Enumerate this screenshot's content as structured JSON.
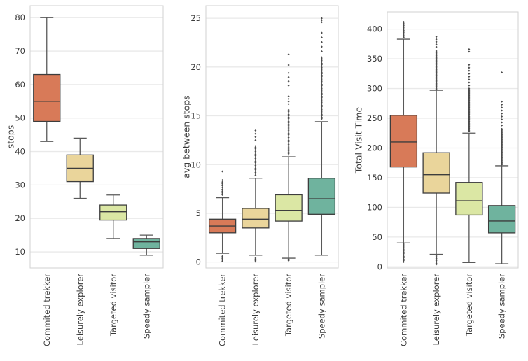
{
  "figure": {
    "background": "#ffffff",
    "text_color": "#3b3b3b",
    "grid_color": "#e9e9e9",
    "spine_color": "#d2d2d2",
    "box_edge_color": "#3d3d3d",
    "whisker_color": "#595959",
    "flier_color": "#4a4a4a",
    "box_fills": [
      "#d87a58",
      "#ead59b",
      "#dbe7a4",
      "#6fb39e"
    ]
  },
  "chart_data": [
    {
      "type": "box",
      "title": "",
      "ylabel": "stops",
      "xlabel": "",
      "categories": [
        "Commited trekker",
        "Leisurely explorer",
        "Targeted visitor",
        "Speedy sampler"
      ],
      "ylim": [
        5.2,
        83.6
      ],
      "yticks": [
        10,
        20,
        30,
        40,
        50,
        60,
        70,
        80
      ],
      "grid": true,
      "legend": "none",
      "boxes": [
        {
          "category": "Commited trekker",
          "whisker_low": 43,
          "q1": 49,
          "median": 55,
          "q3": 63,
          "whisker_high": 80,
          "outliers_above": [],
          "outliers_below": []
        },
        {
          "category": "Leisurely explorer",
          "whisker_low": 26,
          "q1": 31,
          "median": 35,
          "q3": 39,
          "whisker_high": 44,
          "outliers_above": [],
          "outliers_below": []
        },
        {
          "category": "Targeted visitor",
          "whisker_low": 14,
          "q1": 19.5,
          "median": 22,
          "q3": 24,
          "whisker_high": 27,
          "outliers_above": [],
          "outliers_below": []
        },
        {
          "category": "Speedy sampler",
          "whisker_low": 9,
          "q1": 11,
          "median": 13,
          "q3": 14,
          "whisker_high": 15,
          "outliers_above": [],
          "outliers_below": []
        }
      ]
    },
    {
      "type": "box",
      "title": "",
      "ylabel": "avg between stops",
      "xlabel": "",
      "categories": [
        "Commited trekker",
        "Leisurely explorer",
        "Targeted visitor",
        "Speedy sampler"
      ],
      "ylim": [
        -0.6,
        26.3
      ],
      "yticks": [
        0,
        5,
        10,
        15,
        20,
        25
      ],
      "grid": true,
      "legend": "none",
      "boxes": [
        {
          "category": "Commited trekker",
          "whisker_low": 0.9,
          "q1": 3.0,
          "median": 3.7,
          "q3": 4.4,
          "whisker_high": 6.6,
          "outliers_above": [
            [
              6.9,
              8.4,
              9
            ],
            [
              9.3,
              9.3,
              1
            ]
          ],
          "outliers_below": [
            [
              0.1,
              0.6,
              5
            ]
          ]
        },
        {
          "category": "Leisurely explorer",
          "whisker_low": 0.7,
          "q1": 3.5,
          "median": 4.4,
          "q3": 5.5,
          "whisker_high": 8.6,
          "outliers_above": [
            [
              8.9,
              11.9,
              22
            ],
            [
              12.5,
              13.5,
              4
            ]
          ],
          "outliers_below": [
            [
              0.05,
              0.4,
              4
            ]
          ]
        },
        {
          "category": "Targeted visitor",
          "whisker_low": 0.4,
          "q1": 4.2,
          "median": 5.3,
          "q3": 6.9,
          "whisker_high": 10.8,
          "outliers_above": [
            [
              11.0,
              15.6,
              32
            ],
            [
              16.2,
              17.0,
              4
            ],
            [
              18.1,
              19.4,
              4
            ],
            [
              20.2,
              20.2,
              1
            ],
            [
              21.3,
              21.3,
              1
            ]
          ],
          "outliers_below": [
            [
              0.15,
              0.3,
              2
            ]
          ]
        },
        {
          "category": "Speedy sampler",
          "whisker_low": 0.7,
          "q1": 4.9,
          "median": 6.5,
          "q3": 8.6,
          "whisker_high": 14.4,
          "outliers_above": [
            [
              14.7,
              21.0,
              42
            ],
            [
              21.6,
              23.5,
              5
            ],
            [
              24.6,
              25.0,
              3
            ]
          ],
          "outliers_below": []
        }
      ]
    },
    {
      "type": "box",
      "title": "",
      "ylabel": "Total Visit Time",
      "xlabel": "",
      "categories": [
        "Commited trekker",
        "Leisurely explorer",
        "Targeted visitor",
        "Speedy sampler"
      ],
      "ylim": [
        -2,
        429
      ],
      "yticks": [
        0,
        50,
        100,
        150,
        200,
        250,
        300,
        350,
        400
      ],
      "grid": true,
      "legend": "none",
      "boxes": [
        {
          "category": "Commited trekker",
          "whisker_low": 40,
          "q1": 168,
          "median": 210,
          "q3": 255,
          "whisker_high": 383,
          "outliers_above": [
            [
              386,
              412,
              14
            ]
          ],
          "outliers_below": [
            [
              8,
              38,
              14
            ]
          ]
        },
        {
          "category": "Leisurely explorer",
          "whisker_low": 21,
          "q1": 124,
          "median": 155,
          "q3": 192,
          "whisker_high": 297,
          "outliers_above": [
            [
              299,
              363,
              42
            ],
            [
              370,
              387,
              5
            ]
          ],
          "outliers_below": [
            [
              4,
              18,
              8
            ]
          ]
        },
        {
          "category": "Targeted visitor",
          "whisker_low": 7,
          "q1": 87,
          "median": 111,
          "q3": 142,
          "whisker_high": 225,
          "outliers_above": [
            [
              228,
              300,
              44
            ],
            [
              305,
              340,
              8
            ],
            [
              362,
              366,
              2
            ]
          ],
          "outliers_below": []
        },
        {
          "category": "Speedy sampler",
          "whisker_low": 5,
          "q1": 57,
          "median": 77,
          "q3": 103,
          "whisker_high": 170,
          "outliers_above": [
            [
              172,
              232,
              38
            ],
            [
              238,
              278,
              9
            ],
            [
              327,
              327,
              1
            ]
          ],
          "outliers_below": []
        }
      ]
    }
  ]
}
